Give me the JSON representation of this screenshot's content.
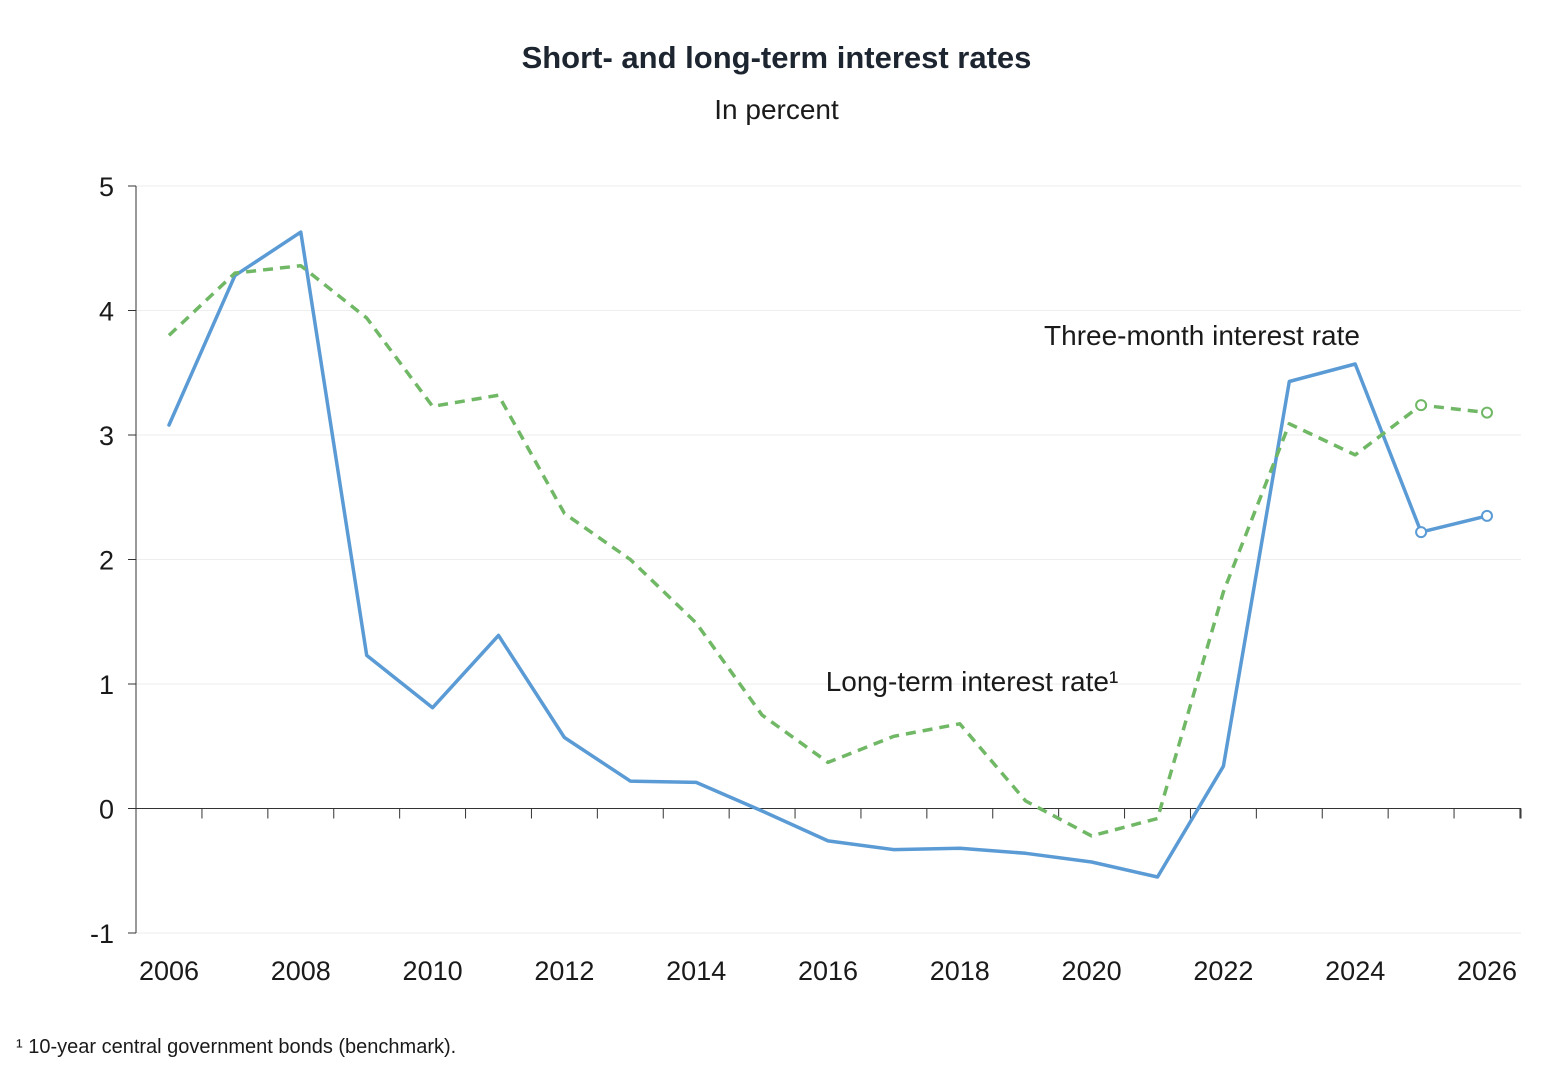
{
  "page": {
    "title": "Short- and long-term interest rates",
    "subtitle": "In percent",
    "footnote": "¹ 10-year central government bonds (benchmark)."
  },
  "chart_data": {
    "type": "line",
    "title": "Short- and long-term interest rates",
    "subtitle": "In percent",
    "xlabel": "",
    "ylabel": "",
    "x": [
      2006,
      2007,
      2008,
      2009,
      2010,
      2011,
      2012,
      2013,
      2014,
      2015,
      2016,
      2017,
      2018,
      2019,
      2020,
      2021,
      2022,
      2023,
      2024,
      2025,
      2026
    ],
    "x_ticks": [
      "2006",
      "2008",
      "2010",
      "2012",
      "2014",
      "2016",
      "2018",
      "2020",
      "2022",
      "2024",
      "2026"
    ],
    "xlim": [
      2006,
      2026
    ],
    "y_ticks": [
      "5",
      "4",
      "3",
      "2",
      "1",
      "0",
      "-1"
    ],
    "ylim": [
      -1,
      5
    ],
    "grid": "horizontal",
    "legend": "inline labels",
    "forecast_from": 2025,
    "series": [
      {
        "name": "Three-month interest rate",
        "style": "solid",
        "color": "#5b9bd5",
        "values": [
          3.08,
          4.28,
          4.63,
          1.23,
          0.81,
          1.39,
          0.57,
          0.22,
          0.21,
          -0.02,
          -0.26,
          -0.33,
          -0.32,
          -0.36,
          -0.43,
          -0.55,
          0.34,
          3.43,
          3.57,
          2.22,
          2.35
        ]
      },
      {
        "name": "Long-term interest rate¹",
        "style": "dashed",
        "color": "#70b865",
        "values": [
          3.8,
          4.3,
          4.36,
          3.94,
          3.23,
          3.32,
          2.37,
          2.0,
          1.49,
          0.75,
          0.37,
          0.58,
          0.68,
          0.06,
          -0.22,
          -0.08,
          1.74,
          3.09,
          2.84,
          3.24,
          3.18
        ]
      }
    ]
  }
}
